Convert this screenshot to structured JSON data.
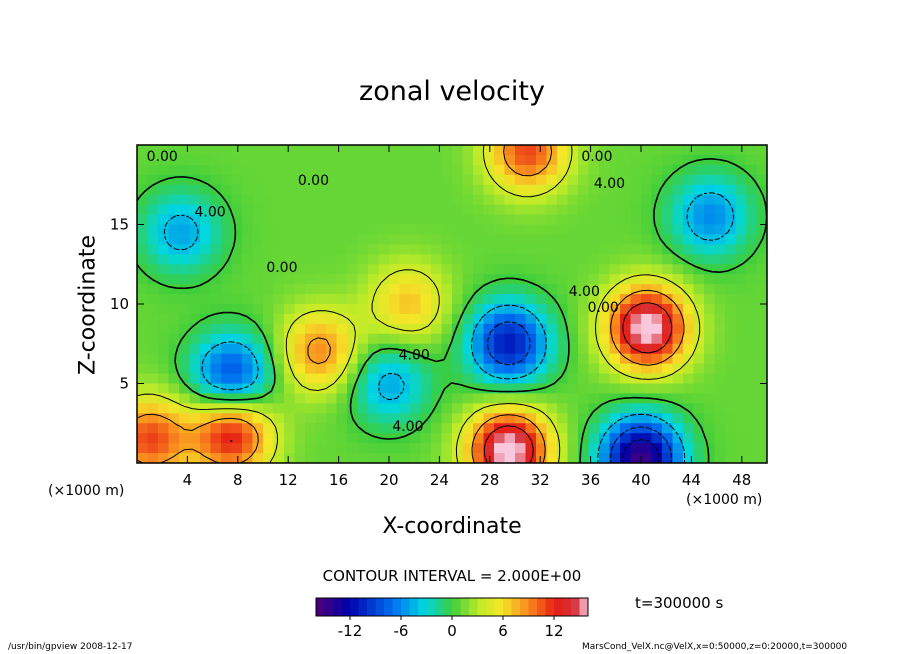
{
  "title": "zonal velocity",
  "xlabel": "X-coordinate",
  "ylabel": "Z-coordinate",
  "x_unit": "(×1000 m)",
  "contour_interval": "CONTOUR INTERVAL = 2.000E+00",
  "time_label": "t=300000 s",
  "footer_left": "/usr/bin/gpview  2008-12-17",
  "footer_right": "MarsCond_VelX.nc@VelX,x=0:50000,z=0:20000,t=300000",
  "chart_data": {
    "type": "heatmap",
    "title": "zonal velocity",
    "xlabel": "X-coordinate",
    "ylabel": "Z-coordinate",
    "x_unit": "(×1000 m)",
    "xlim": [
      0,
      50
    ],
    "ylim": [
      0,
      20
    ],
    "x_ticks": [
      4,
      8,
      12,
      16,
      20,
      24,
      28,
      32,
      36,
      40,
      44,
      48
    ],
    "y_ticks": [
      5,
      10,
      15
    ],
    "colorbar": {
      "min": -16,
      "max": 16,
      "ticks": [
        -12,
        -6,
        0,
        6,
        12
      ]
    },
    "contour_labels": [
      {
        "x": 2.0,
        "z": 19.0,
        "text": "0.00"
      },
      {
        "x": 14.0,
        "z": 17.5,
        "text": "0.00"
      },
      {
        "x": 36.5,
        "z": 19.0,
        "text": "0.00"
      },
      {
        "x": 37.5,
        "z": 17.3,
        "text": "4.00"
      },
      {
        "x": 5.8,
        "z": 15.5,
        "text": "4.00"
      },
      {
        "x": 11.5,
        "z": 12.0,
        "text": "0.00"
      },
      {
        "x": 22.0,
        "z": 6.5,
        "text": "4.00"
      },
      {
        "x": 21.5,
        "z": 2.0,
        "text": "4.00"
      },
      {
        "x": 35.5,
        "z": 10.5,
        "text": "4.00"
      },
      {
        "x": 37.0,
        "z": 9.5,
        "text": "0.00"
      }
    ],
    "field_features": [
      {
        "kind": "min",
        "x": 7.5,
        "z": 5.5,
        "value": -10
      },
      {
        "kind": "min",
        "x": 29.5,
        "z": 7.5,
        "value": -12
      },
      {
        "kind": "min",
        "x": 20.0,
        "z": 5.0,
        "value": -6
      },
      {
        "kind": "min",
        "x": 45.5,
        "z": 15.5,
        "value": -7
      },
      {
        "kind": "min",
        "x": 3.5,
        "z": 14.5,
        "value": -6
      },
      {
        "kind": "min",
        "x": 40.0,
        "z": 0.3,
        "value": -16
      },
      {
        "kind": "max",
        "x": 40.5,
        "z": 8.5,
        "value": 16
      },
      {
        "kind": "max",
        "x": 29.5,
        "z": 0.8,
        "value": 16
      },
      {
        "kind": "max",
        "x": 7.5,
        "z": 1.8,
        "value": 12
      },
      {
        "kind": "max",
        "x": 1.0,
        "z": 1.5,
        "value": 10
      },
      {
        "kind": "max",
        "x": 14.5,
        "z": 7.0,
        "value": 8
      },
      {
        "kind": "max",
        "x": 21.5,
        "z": 10.0,
        "value": 6
      },
      {
        "kind": "max",
        "x": 31.0,
        "z": 19.6,
        "value": 10
      }
    ]
  }
}
